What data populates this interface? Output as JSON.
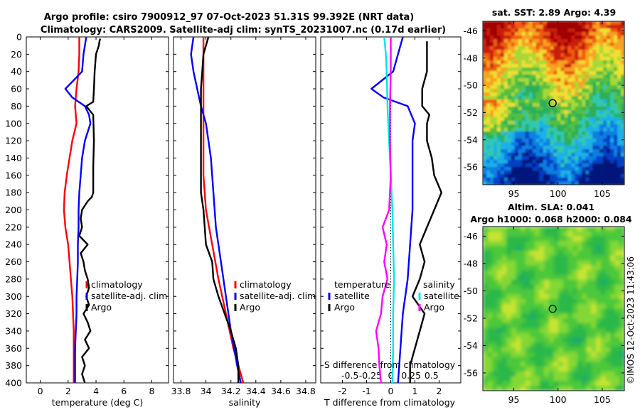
{
  "title": {
    "line1": "Argo profile: csiro 7900912_97 07-Oct-2023 51.31S 99.392E (NRT data)",
    "line2": "Climatology: CARS2009. Satellite-adj clim: synTS_20231007.nc (0.17d earlier)"
  },
  "credit": "©IMOS 12-Oct-2023 11:43:06",
  "colors": {
    "climatology": "#ff0000",
    "satellite": "#0000ff",
    "argo": "#000000",
    "cyan": "#00e5ee",
    "magenta": "#ff00ff"
  },
  "chart_data": [
    {
      "type": "line",
      "name": "temperature",
      "xlabel": "temperature (deg C)",
      "ylabel": "",
      "xlim": [
        -1,
        9.2
      ],
      "ylim": [
        400,
        0
      ],
      "xticks": [
        0,
        2,
        4,
        6,
        8
      ],
      "yticks": [
        0,
        20,
        40,
        60,
        80,
        100,
        120,
        140,
        160,
        180,
        200,
        220,
        240,
        260,
        280,
        300,
        320,
        340,
        360,
        380,
        400
      ],
      "legend": [
        "climatology",
        "satellite-adj. clim",
        "Argo"
      ],
      "series": [
        {
          "name": "climatology",
          "color": "#ff0000",
          "depth": [
            0,
            10,
            20,
            40,
            60,
            80,
            100,
            120,
            140,
            160,
            180,
            200,
            220,
            240,
            260,
            280,
            300,
            320,
            340,
            360,
            380,
            400
          ],
          "value": [
            2.8,
            2.8,
            2.8,
            2.75,
            2.6,
            2.5,
            2.6,
            2.3,
            2.1,
            1.9,
            1.75,
            1.7,
            1.8,
            2.0,
            2.1,
            2.2,
            2.3,
            2.35,
            2.4,
            2.4,
            2.4,
            2.4
          ]
        },
        {
          "name": "satellite-adj. clim",
          "color": "#0000ff",
          "depth": [
            0,
            10,
            20,
            40,
            50,
            60,
            70,
            80,
            90,
            100,
            120,
            140,
            160,
            180,
            200,
            220,
            240,
            260,
            280,
            300,
            320,
            340,
            360,
            380,
            400
          ],
          "value": [
            3.3,
            3.2,
            3.1,
            3.0,
            2.4,
            1.8,
            2.3,
            3.2,
            3.5,
            3.6,
            3.2,
            3.0,
            2.9,
            2.8,
            2.75,
            2.75,
            2.7,
            2.7,
            2.65,
            2.6,
            2.6,
            2.55,
            2.5,
            2.5,
            2.5
          ]
        },
        {
          "name": "Argo",
          "color": "#000000",
          "depth": [
            2,
            5,
            10,
            20,
            40,
            60,
            75,
            80,
            90,
            120,
            150,
            180,
            185,
            190,
            200,
            210,
            220,
            230,
            240,
            250,
            260,
            270,
            280,
            290,
            300,
            310,
            320,
            330,
            340,
            350,
            360,
            370,
            380,
            390,
            400
          ],
          "value": [
            4.3,
            4.25,
            4.2,
            4.0,
            3.9,
            3.85,
            3.8,
            3.3,
            3.8,
            3.85,
            3.8,
            3.8,
            3.7,
            3.4,
            3.0,
            2.9,
            3.0,
            2.8,
            3.4,
            2.9,
            3.1,
            3.2,
            3.4,
            3.5,
            3.3,
            3.5,
            3.1,
            3.4,
            3.6,
            3.2,
            3.5,
            3.0,
            3.2,
            3.0,
            3.2
          ]
        }
      ]
    },
    {
      "type": "line",
      "name": "salinity",
      "xlabel": "salinity",
      "xlim": [
        33.74,
        34.88
      ],
      "ylim": [
        400,
        0
      ],
      "xticks": [
        33.8,
        34,
        34.2,
        34.4,
        34.6,
        34.8
      ],
      "xticklabels": [
        "33.8",
        "34",
        "34.2",
        "34.4",
        "34.6",
        "34.8"
      ],
      "legend": [
        "climatology",
        "satellite-adj. clim",
        "Argo"
      ],
      "series": [
        {
          "name": "climatology",
          "color": "#ff0000",
          "depth": [
            0,
            20,
            40,
            80,
            120,
            160,
            200,
            240,
            280,
            320,
            360,
            400
          ],
          "value": [
            33.98,
            33.98,
            33.98,
            33.98,
            33.98,
            33.98,
            34.0,
            34.05,
            34.1,
            34.16,
            34.22,
            34.3
          ]
        },
        {
          "name": "satellite-adj. clim",
          "color": "#0000ff",
          "depth": [
            0,
            20,
            40,
            60,
            80,
            100,
            140,
            180,
            220,
            260,
            300,
            340,
            380,
            400
          ],
          "value": [
            33.9,
            33.88,
            33.9,
            33.93,
            33.96,
            34.0,
            34.04,
            34.06,
            34.08,
            34.12,
            34.16,
            34.2,
            34.25,
            34.28
          ]
        },
        {
          "name": "Argo",
          "color": "#000000",
          "depth": [
            0,
            10,
            20,
            40,
            60,
            80,
            100,
            140,
            180,
            200,
            220,
            240,
            260,
            280,
            300,
            320,
            340,
            360,
            380,
            400
          ],
          "value": [
            34.02,
            34.0,
            33.98,
            33.97,
            33.96,
            33.96,
            33.96,
            33.96,
            33.96,
            33.98,
            33.99,
            34.0,
            34.05,
            34.06,
            34.1,
            34.15,
            34.2,
            34.24,
            34.26,
            34.26
          ]
        }
      ]
    },
    {
      "type": "line",
      "name": "difference",
      "xlabel": "T difference from climatology",
      "toplabel": "S difference from climatology",
      "xlim": [
        -2.9,
        2.9
      ],
      "ylim": [
        400,
        0
      ],
      "xticks": [
        -2,
        -1,
        0,
        1,
        2
      ],
      "sticks": [
        -0.5,
        -0.25,
        0,
        0.25,
        0.5
      ],
      "sticklabels": [
        "-0.5",
        "-0.25",
        "0",
        "0.25",
        "0.5"
      ],
      "legend_temperature": {
        "title": "temperature",
        "items": [
          "satellite",
          "Argo"
        ]
      },
      "legend_salinity": {
        "title": "salinity",
        "items": [
          "satellite",
          "Argo"
        ]
      },
      "series": [
        {
          "name": "T satellite",
          "color": "#0000ff",
          "depth": [
            0,
            20,
            40,
            60,
            70,
            80,
            100,
            120,
            160,
            200,
            240,
            280,
            320,
            360,
            400
          ],
          "value": [
            0.5,
            0.3,
            0.1,
            -0.8,
            -0.3,
            0.7,
            1.0,
            0.9,
            0.9,
            0.9,
            0.8,
            0.7,
            0.5,
            0.4,
            0.3
          ]
        },
        {
          "name": "T Argo",
          "color": "#000000",
          "depth": [
            5,
            20,
            40,
            60,
            80,
            90,
            100,
            120,
            140,
            160,
            180,
            200,
            220,
            240,
            260,
            280,
            300,
            320,
            340,
            360,
            380,
            400
          ],
          "value": [
            1.5,
            1.5,
            1.5,
            1.3,
            1.3,
            1.6,
            1.5,
            1.5,
            1.7,
            1.8,
            2.1,
            1.8,
            1.5,
            1.2,
            1.4,
            1.2,
            0.9,
            1.4,
            1.2,
            1.0,
            0.8,
            0.8
          ]
        },
        {
          "name": "S satellite",
          "color": "#00e5ee",
          "depth": [
            0,
            20,
            40,
            80,
            120,
            160,
            200,
            240,
            280,
            320,
            360,
            400
          ],
          "value": [
            -0.08,
            -0.06,
            -0.05,
            -0.04,
            -0.02,
            0.0,
            0.02,
            0.03,
            0.04,
            0.03,
            0.03,
            0.02
          ]
        },
        {
          "name": "S Argo",
          "color": "#ff00ff",
          "depth": [
            0,
            20,
            40,
            80,
            120,
            160,
            200,
            220,
            240,
            260,
            280,
            300,
            320,
            340,
            360,
            380,
            400
          ],
          "value": [
            0.0,
            0.0,
            0.0,
            -0.01,
            -0.01,
            0.0,
            -0.02,
            -0.1,
            -0.05,
            -0.08,
            -0.04,
            -0.1,
            -0.12,
            -0.18,
            -0.15,
            -0.14,
            -0.12
          ]
        }
      ]
    },
    {
      "type": "heatmap",
      "name": "sst-map",
      "title": "sat. SST: 2.89 Argo: 4.39",
      "xlim": [
        91.5,
        107.5
      ],
      "ylim": [
        -57.3,
        -45.3
      ],
      "xticks": [
        95,
        100,
        105
      ],
      "yticks": [
        -46,
        -48,
        -50,
        -52,
        -54,
        -56
      ],
      "marker": {
        "lon": 99.392,
        "lat": -51.31
      }
    },
    {
      "type": "heatmap",
      "name": "sla-map",
      "title": "Altim. SLA: 0.041",
      "subtitle": "Argo h1000: 0.068 h2000: 0.084",
      "xlim": [
        91.5,
        107.5
      ],
      "ylim": [
        -57.3,
        -45.3
      ],
      "xticks": [
        95,
        100,
        105
      ],
      "yticks": [
        -46,
        -48,
        -50,
        -52,
        -54,
        -56
      ],
      "marker": {
        "lon": 99.392,
        "lat": -51.31
      }
    }
  ]
}
